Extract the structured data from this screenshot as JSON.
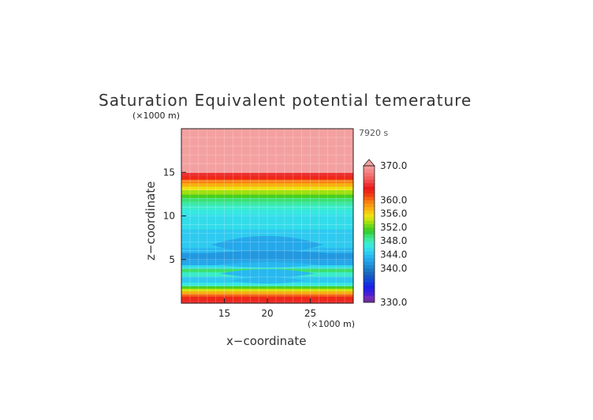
{
  "chart_data": {
    "type": "heatmap",
    "title": "Saturation Equivalent potential temerature",
    "xlabel": "x−coordinate",
    "ylabel": "z−coordinate",
    "x_unit": "(×1000 m)",
    "y_unit": "(×1000 m)",
    "time_label": "7920 s",
    "xlim": [
      10,
      30
    ],
    "ylim": [
      0,
      20
    ],
    "x_ticks": [
      15,
      20,
      25
    ],
    "y_ticks": [
      5,
      10,
      15
    ],
    "colorbar": {
      "min": 330,
      "max": 370,
      "levels": [
        330,
        331,
        332,
        333,
        334,
        335,
        336,
        337,
        338,
        339,
        340,
        341,
        342,
        343,
        344,
        345,
        346,
        347,
        348,
        349,
        350,
        351,
        352,
        353,
        354,
        355,
        356,
        357,
        358,
        359,
        360,
        361,
        362,
        363,
        364,
        365,
        366,
        367,
        368,
        369,
        370
      ],
      "colors": [
        "#6a2ba0",
        "#6f2ac0",
        "#4a1fd0",
        "#2e1fe0",
        "#1a20e6",
        "#1530e0",
        "#1445d8",
        "#1656c8",
        "#1a66c0",
        "#1e76c8",
        "#1f88d0",
        "#2298e0",
        "#25a8ea",
        "#28b8f0",
        "#2ecaf0",
        "#32dcea",
        "#36e8e0",
        "#3aecc8",
        "#3ee8a0",
        "#3ae070",
        "#30d040",
        "#48d020",
        "#70d818",
        "#a0e010",
        "#d0e410",
        "#f0e010",
        "#f8c810",
        "#f8b010",
        "#f89810",
        "#f88010",
        "#f46010",
        "#f04010",
        "#ee2818",
        "#ea1a1a",
        "#ee3030",
        "#f04a4a",
        "#f26060",
        "#f47474",
        "#f48686",
        "#f49898"
      ],
      "over_color": "#f4a0a0",
      "labels": [
        "370.0",
        "360.0",
        "356.0",
        "352.0",
        "348.0",
        "344.0",
        "340.0",
        "330.0"
      ]
    },
    "bands": [
      {
        "z0": 0.0,
        "z1": 0.3,
        "value": 364
      },
      {
        "z0": 0.3,
        "z1": 0.8,
        "value": 362
      },
      {
        "z0": 0.8,
        "z1": 1.1,
        "value": 360
      },
      {
        "z0": 1.1,
        "z1": 1.4,
        "value": 357
      },
      {
        "z0": 1.4,
        "z1": 1.7,
        "value": 354
      },
      {
        "z0": 1.7,
        "z1": 2.0,
        "value": 351
      },
      {
        "z0": 2.0,
        "z1": 2.4,
        "value": 346
      },
      {
        "z0": 2.4,
        "z1": 3.1,
        "value": 344
      },
      {
        "z0": 3.1,
        "z1": 3.6,
        "value": 347
      },
      {
        "z0": 3.6,
        "z1": 4.0,
        "value": 349
      },
      {
        "z0": 4.0,
        "z1": 4.4,
        "value": 345
      },
      {
        "z0": 4.4,
        "z1": 5.0,
        "value": 342
      },
      {
        "z0": 5.0,
        "z1": 5.8,
        "value": 341
      },
      {
        "z0": 5.8,
        "z1": 6.4,
        "value": 343
      },
      {
        "z0": 6.4,
        "z1": 8.5,
        "value": 344
      },
      {
        "z0": 8.5,
        "z1": 10.2,
        "value": 345
      },
      {
        "z0": 10.2,
        "z1": 10.8,
        "value": 346
      },
      {
        "z0": 10.8,
        "z1": 11.3,
        "value": 347
      },
      {
        "z0": 11.3,
        "z1": 11.7,
        "value": 348
      },
      {
        "z0": 11.7,
        "z1": 12.1,
        "value": 349
      },
      {
        "z0": 12.1,
        "z1": 12.5,
        "value": 351
      },
      {
        "z0": 12.5,
        "z1": 13.0,
        "value": 353
      },
      {
        "z0": 13.0,
        "z1": 13.4,
        "value": 355
      },
      {
        "z0": 13.4,
        "z1": 13.8,
        "value": 357
      },
      {
        "z0": 13.8,
        "z1": 14.2,
        "value": 359
      },
      {
        "z0": 14.2,
        "z1": 14.6,
        "value": 362
      },
      {
        "z0": 14.6,
        "z1": 15.0,
        "value": 364
      },
      {
        "z0": 15.0,
        "z1": 20.0,
        "value": 371
      }
    ],
    "features": [
      {
        "shape": "lens",
        "xc": 20.0,
        "zc": 6.7,
        "half_width": 6.5,
        "half_height": 1.0,
        "value": 342
      },
      {
        "shape": "lens",
        "xc": 20.0,
        "zc": 5.5,
        "half_width": 9.8,
        "half_height": 0.5,
        "value": 341
      },
      {
        "shape": "lens",
        "xc": 20.0,
        "zc": 4.4,
        "half_width": 6.0,
        "half_height": 0.3,
        "value": 343
      },
      {
        "shape": "lens",
        "xc": 20.0,
        "zc": 3.4,
        "half_width": 5.5,
        "half_height": 0.5,
        "value": 343
      },
      {
        "shape": "lens",
        "xc": 20.0,
        "zc": 2.6,
        "half_width": 4.5,
        "half_height": 0.35,
        "value": 343
      }
    ]
  }
}
